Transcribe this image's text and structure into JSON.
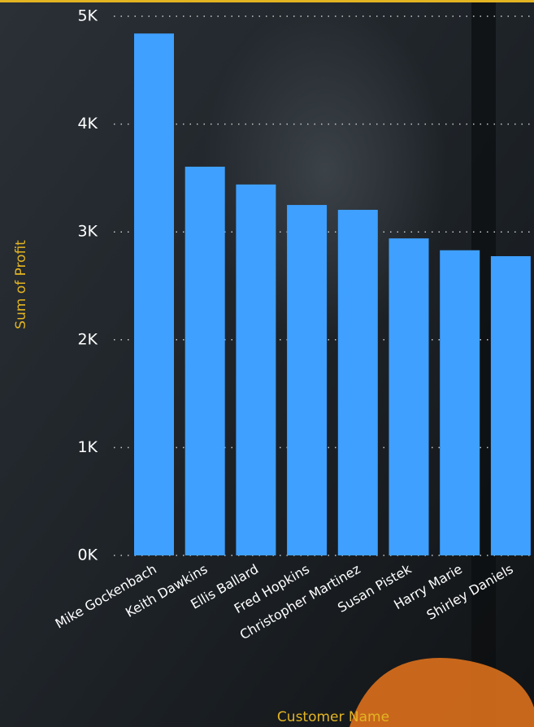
{
  "chart_data": {
    "type": "bar",
    "x_label": "Customer Name",
    "y_label": "Sum of Profit",
    "categories": [
      "Mike Gockenbach",
      "Keith Dawkins",
      "Ellis Ballard",
      "Fred Hopkins",
      "Christopher Martinez",
      "Susan Pistek",
      "Harry Marie",
      "Shirley Daniels"
    ],
    "values": [
      4840,
      3605,
      3440,
      3250,
      3205,
      2940,
      2830,
      2775
    ],
    "color": "#3fa0ff",
    "ylim": [
      0,
      5000
    ],
    "yticks": [
      {
        "value": 0,
        "label": "0K"
      },
      {
        "value": 1000,
        "label": "1K"
      },
      {
        "value": 2000,
        "label": "2K"
      },
      {
        "value": 3000,
        "label": "3K"
      },
      {
        "value": 4000,
        "label": "4K"
      },
      {
        "value": 5000,
        "label": "5K"
      }
    ],
    "grid": true
  }
}
